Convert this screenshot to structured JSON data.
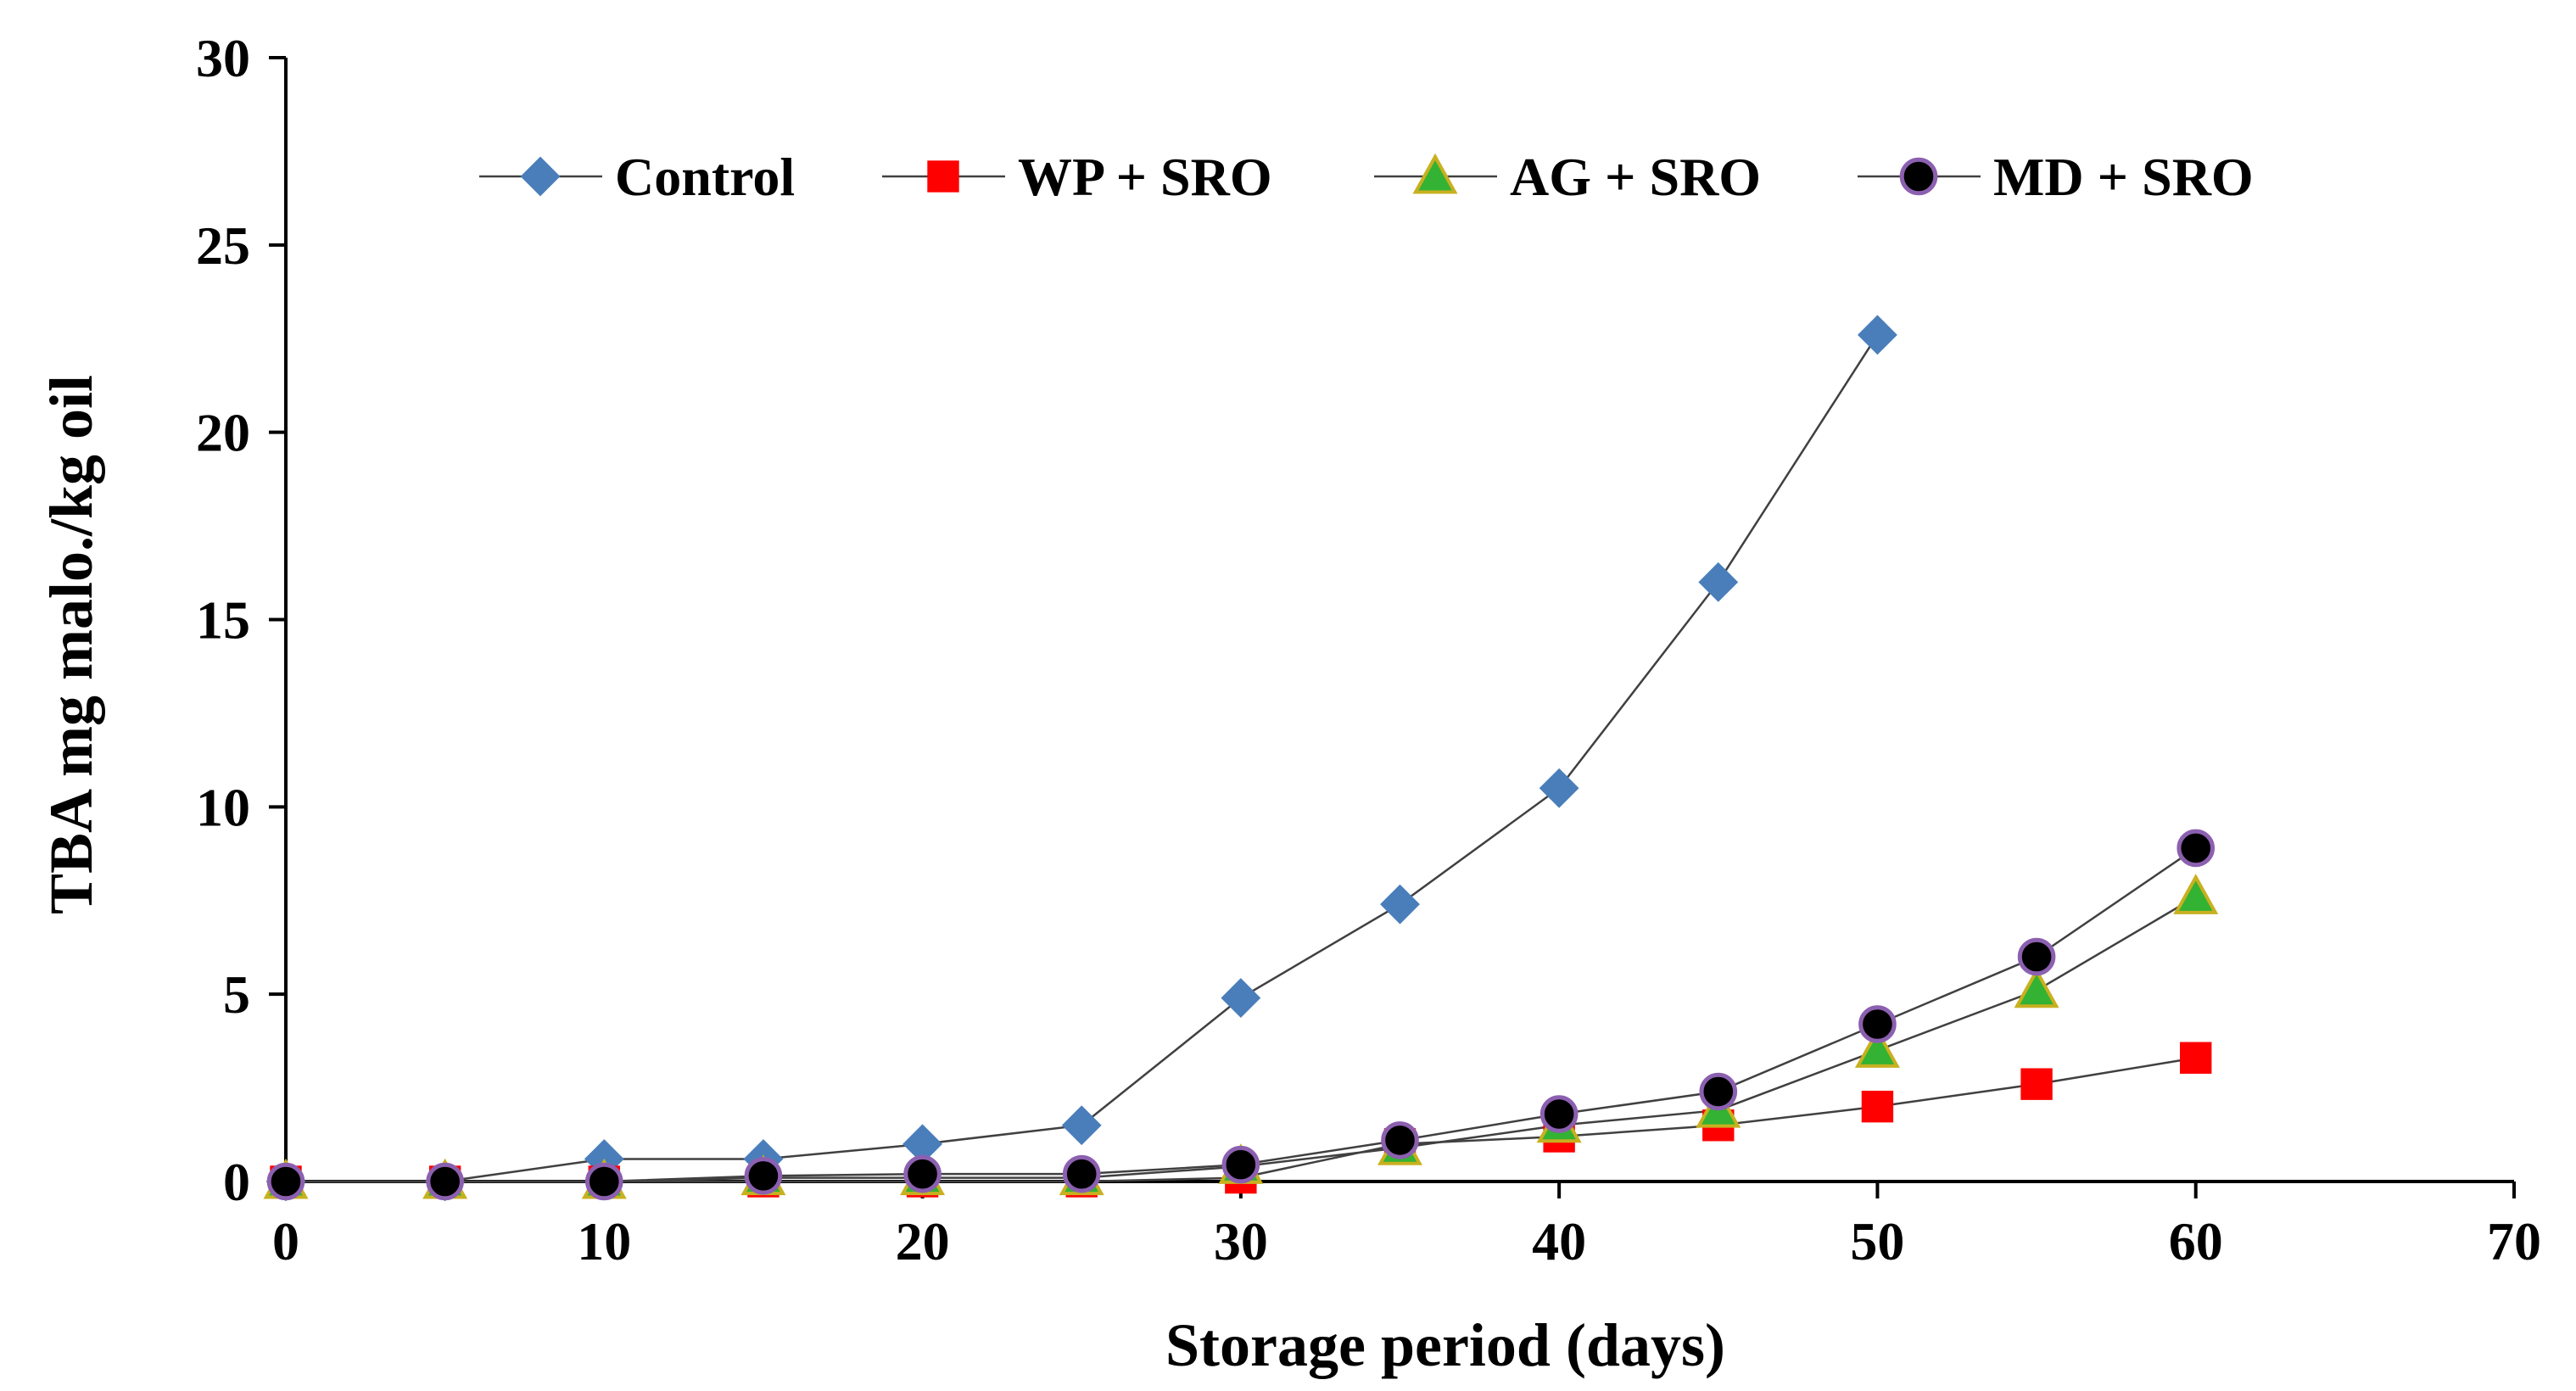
{
  "chart_data": {
    "type": "line",
    "xlabel": "Storage period (days)",
    "ylabel": "TBA mg malo./kg oil",
    "xlim": [
      0,
      70
    ],
    "ylim": [
      0,
      30
    ],
    "xticks": [
      0,
      10,
      20,
      30,
      40,
      50,
      60,
      70
    ],
    "yticks": [
      0,
      5,
      10,
      15,
      20,
      25,
      30
    ],
    "grid": false,
    "legend_position": "top",
    "series": [
      {
        "name": "Control",
        "color": "#4a7ebb",
        "marker": "diamond",
        "x": [
          0,
          5,
          10,
          15,
          20,
          25,
          30,
          35,
          40,
          45,
          50
        ],
        "y": [
          0,
          0,
          0.6,
          0.6,
          1.0,
          1.5,
          4.9,
          7.4,
          10.5,
          16.0,
          22.6
        ]
      },
      {
        "name": "WP + SRO",
        "color": "#ff0000",
        "marker": "square",
        "x": [
          0,
          5,
          10,
          15,
          20,
          25,
          30,
          35,
          40,
          45,
          50,
          55,
          60
        ],
        "y": [
          0,
          0,
          0,
          0,
          0,
          0,
          0.1,
          1.0,
          1.2,
          1.5,
          2.0,
          2.6,
          3.3
        ]
      },
      {
        "name": "AG + SRO",
        "color": "#33b233",
        "marker": "triangle",
        "x": [
          0,
          5,
          10,
          15,
          20,
          25,
          30,
          35,
          40,
          45,
          50,
          55,
          60
        ],
        "y": [
          0,
          0,
          0,
          0.1,
          0.1,
          0.1,
          0.4,
          0.9,
          1.5,
          1.9,
          3.5,
          5.1,
          7.6
        ]
      },
      {
        "name": "MD + SRO",
        "color": "#000000",
        "marker": "circle",
        "x": [
          0,
          5,
          10,
          15,
          20,
          25,
          30,
          35,
          40,
          45,
          50,
          55,
          60
        ],
        "y": [
          0,
          0,
          0,
          0.15,
          0.2,
          0.2,
          0.45,
          1.1,
          1.8,
          2.4,
          4.2,
          6.0,
          8.9
        ]
      }
    ]
  }
}
